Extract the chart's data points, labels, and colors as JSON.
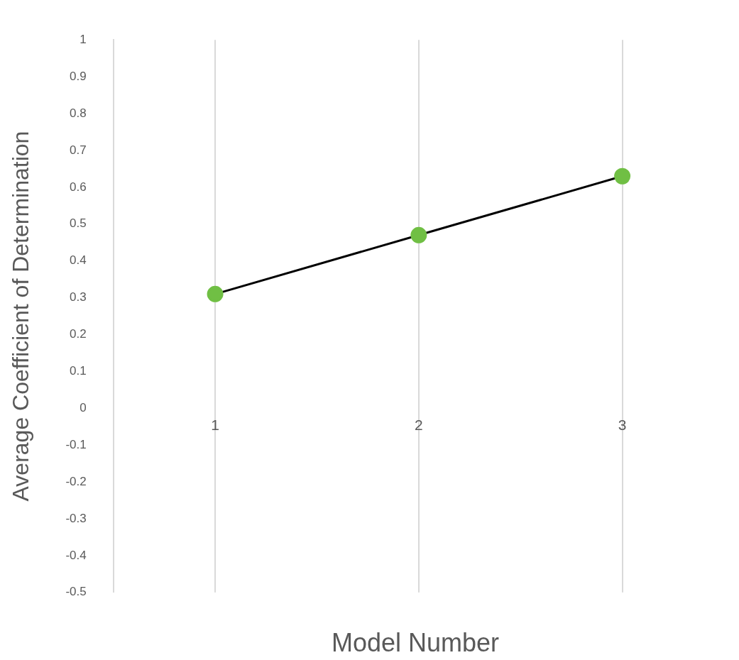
{
  "chart_data": {
    "type": "line",
    "xlabel": "Model Number",
    "ylabel": "Average Coefficient of Determination",
    "categories": [
      "1",
      "2",
      "3"
    ],
    "ylim": [
      -0.5,
      1
    ],
    "yticks": [
      -0.5,
      -0.4,
      -0.3,
      -0.2,
      -0.1,
      0,
      0.1,
      0.2,
      0.3,
      0.4,
      0.5,
      0.6,
      0.7,
      0.8,
      0.9,
      1
    ],
    "series": [
      {
        "color": "#000000",
        "colors": [
          "#70bf44",
          "#70bf44",
          "#70bf44"
        ],
        "values": [
          0.31,
          0.47,
          0.63
        ]
      }
    ],
    "marker": "circle",
    "grid": "x",
    "legend": false
  }
}
